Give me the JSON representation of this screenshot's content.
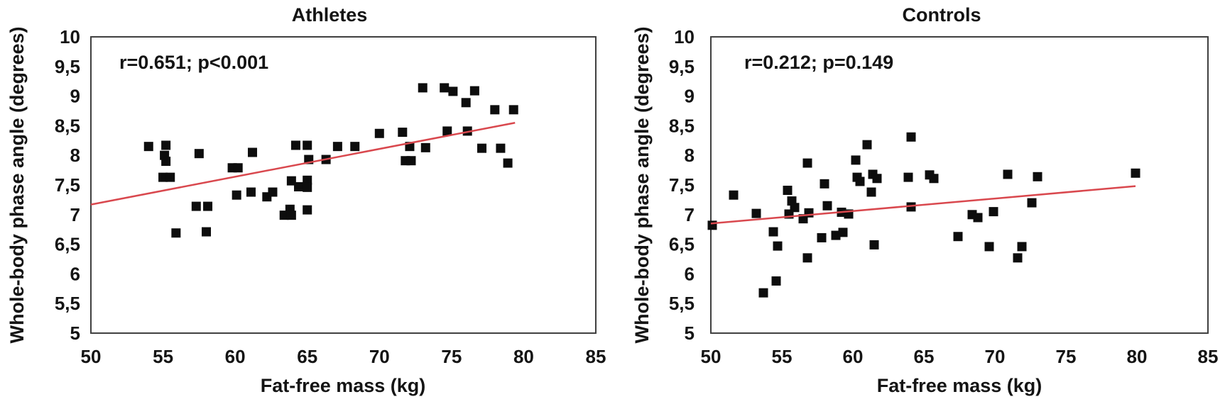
{
  "figure": {
    "background": "#ffffff"
  },
  "chart_data": [
    {
      "type": "scatter",
      "title": "Athletes",
      "annotation": "r=0.651; p<0.001",
      "xlabel": "Fat-free mass (kg)",
      "ylabel": "Whole-body phase angle (degrees)",
      "xlim": [
        50,
        85
      ],
      "ylim": [
        5,
        10
      ],
      "grid": false,
      "legend": false,
      "xtick_values": [
        50,
        55,
        60,
        65,
        70,
        75,
        80,
        85
      ],
      "xtick_labels": [
        "50",
        "55",
        "60",
        "65",
        "70",
        "75",
        "80",
        "85"
      ],
      "ytick_values": [
        5,
        5.5,
        6,
        6.5,
        7,
        7.5,
        8,
        8.5,
        9,
        9.5,
        10
      ],
      "ytick_labels": [
        "5",
        "5,5",
        "6",
        "6,5",
        "7",
        "7,5",
        "8",
        "8,5",
        "9",
        "9,5",
        "10"
      ],
      "marker_color": "#0d0d0d",
      "trend_color": "#d9484e",
      "axis_color": "#404040",
      "trend_line": {
        "x1": 50.0,
        "y1": 7.17,
        "x2": 79.4,
        "y2": 8.55
      },
      "points": [
        [
          54.0,
          8.15
        ],
        [
          55.2,
          8.17
        ],
        [
          55.1,
          8.0
        ],
        [
          55.2,
          7.9
        ],
        [
          57.5,
          8.03
        ],
        [
          61.2,
          8.05
        ],
        [
          59.8,
          7.79
        ],
        [
          60.2,
          7.79
        ],
        [
          64.2,
          8.17
        ],
        [
          65.0,
          8.17
        ],
        [
          65.1,
          7.93
        ],
        [
          66.3,
          7.93
        ],
        [
          55.0,
          7.63
        ],
        [
          55.5,
          7.63
        ],
        [
          60.1,
          7.33
        ],
        [
          61.1,
          7.38
        ],
        [
          62.2,
          7.3
        ],
        [
          62.6,
          7.38
        ],
        [
          63.9,
          7.57
        ],
        [
          64.4,
          7.47
        ],
        [
          65.0,
          7.58
        ],
        [
          65.0,
          7.46
        ],
        [
          57.3,
          7.14
        ],
        [
          58.1,
          7.14
        ],
        [
          63.8,
          7.09
        ],
        [
          63.4,
          6.99
        ],
        [
          63.9,
          6.99
        ],
        [
          65.0,
          7.08
        ],
        [
          55.9,
          6.69
        ],
        [
          58.0,
          6.71
        ],
        [
          73.0,
          9.14
        ],
        [
          74.5,
          9.14
        ],
        [
          75.1,
          9.08
        ],
        [
          76.6,
          9.09
        ],
        [
          76.0,
          8.89
        ],
        [
          78.0,
          8.77
        ],
        [
          79.3,
          8.77
        ],
        [
          70.0,
          8.37
        ],
        [
          71.6,
          8.39
        ],
        [
          74.7,
          8.41
        ],
        [
          76.1,
          8.41
        ],
        [
          67.1,
          8.15
        ],
        [
          68.3,
          8.15
        ],
        [
          72.1,
          8.15
        ],
        [
          73.2,
          8.13
        ],
        [
          71.8,
          7.91
        ],
        [
          72.2,
          7.91
        ],
        [
          77.1,
          8.12
        ],
        [
          78.4,
          8.12
        ],
        [
          78.9,
          7.87
        ]
      ]
    },
    {
      "type": "scatter",
      "title": "Controls",
      "annotation": "r=0.212; p=0.149",
      "xlabel": "Fat-free mass (kg)",
      "ylabel": "Whole-body phase angle (degrees)",
      "xlim": [
        50,
        85
      ],
      "ylim": [
        5,
        10
      ],
      "grid": false,
      "legend": false,
      "xtick_values": [
        50,
        55,
        60,
        65,
        70,
        75,
        80,
        85
      ],
      "xtick_labels": [
        "50",
        "55",
        "60",
        "65",
        "70",
        "75",
        "80",
        "85"
      ],
      "ytick_values": [
        5,
        5.5,
        6,
        6.5,
        7,
        7.5,
        8,
        8.5,
        9,
        9.5,
        10
      ],
      "ytick_labels": [
        "5",
        "5,5",
        "6",
        "6,5",
        "7",
        "7,5",
        "8",
        "8,5",
        "9",
        "9,5",
        "10"
      ],
      "marker_color": "#0d0d0d",
      "trend_color": "#d9484e",
      "axis_color": "#404040",
      "trend_line": {
        "x1": 50.0,
        "y1": 6.85,
        "x2": 79.9,
        "y2": 7.48
      },
      "points": [
        [
          50.1,
          6.82
        ],
        [
          51.6,
          7.33
        ],
        [
          53.2,
          7.02
        ],
        [
          53.7,
          5.68
        ],
        [
          54.6,
          5.88
        ],
        [
          54.4,
          6.71
        ],
        [
          54.7,
          6.47
        ],
        [
          55.4,
          7.41
        ],
        [
          55.7,
          7.23
        ],
        [
          55.9,
          7.12
        ],
        [
          55.5,
          7.01
        ],
        [
          56.5,
          6.93
        ],
        [
          56.9,
          7.03
        ],
        [
          56.8,
          7.87
        ],
        [
          56.8,
          6.27
        ],
        [
          57.8,
          6.61
        ],
        [
          58.0,
          7.52
        ],
        [
          58.2,
          7.15
        ],
        [
          58.8,
          6.65
        ],
        [
          59.3,
          6.7
        ],
        [
          59.2,
          7.04
        ],
        [
          59.7,
          7.01
        ],
        [
          60.2,
          7.92
        ],
        [
          60.3,
          7.63
        ],
        [
          60.5,
          7.56
        ],
        [
          61.0,
          8.18
        ],
        [
          61.4,
          7.68
        ],
        [
          61.7,
          7.61
        ],
        [
          61.3,
          7.38
        ],
        [
          61.5,
          6.49
        ],
        [
          63.9,
          7.63
        ],
        [
          64.1,
          8.31
        ],
        [
          64.1,
          7.13
        ],
        [
          65.4,
          7.67
        ],
        [
          65.7,
          7.61
        ],
        [
          67.4,
          6.63
        ],
        [
          68.4,
          7.0
        ],
        [
          68.8,
          6.95
        ],
        [
          69.9,
          7.05
        ],
        [
          69.6,
          6.46
        ],
        [
          70.9,
          7.68
        ],
        [
          71.9,
          6.46
        ],
        [
          71.6,
          6.27
        ],
        [
          72.6,
          7.2
        ],
        [
          73.0,
          7.64
        ],
        [
          79.9,
          7.7
        ]
      ]
    }
  ]
}
